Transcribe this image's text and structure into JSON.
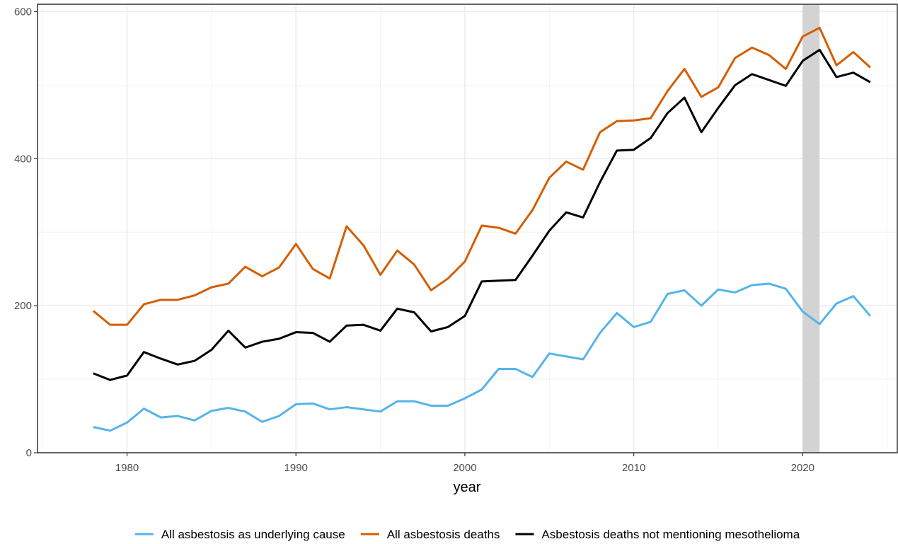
{
  "chart_data": {
    "type": "line",
    "title": "",
    "xlabel": "year",
    "ylabel": "",
    "xlim": [
      1974.7,
      2025.6
    ],
    "ylim": [
      0,
      610
    ],
    "xticks": [
      1980,
      1990,
      2000,
      2010,
      2020
    ],
    "yticks": [
      0,
      200,
      400,
      600
    ],
    "grid": true,
    "legend_position": "bottom",
    "highlight_band": {
      "x_start": 2020,
      "x_end": 2021,
      "color": "#d3d3d3"
    },
    "x": [
      1978,
      1979,
      1980,
      1981,
      1982,
      1983,
      1984,
      1985,
      1986,
      1987,
      1988,
      1989,
      1990,
      1991,
      1992,
      1993,
      1994,
      1995,
      1996,
      1997,
      1998,
      1999,
      2000,
      2001,
      2002,
      2003,
      2004,
      2005,
      2006,
      2007,
      2008,
      2009,
      2010,
      2011,
      2012,
      2013,
      2014,
      2015,
      2016,
      2017,
      2018,
      2019,
      2020,
      2021,
      2022,
      2023,
      2024
    ],
    "series": [
      {
        "name": "All asbestosis as underlying cause",
        "color": "#56B4E9",
        "values": [
          35,
          30,
          41,
          60,
          48,
          50,
          44,
          57,
          61,
          56,
          42,
          50,
          66,
          67,
          59,
          62,
          59,
          56,
          70,
          70,
          64,
          64,
          74,
          86,
          114,
          114,
          103,
          135,
          131,
          127,
          163,
          190,
          171,
          178,
          216,
          221,
          200,
          222,
          218,
          228,
          230,
          223,
          192,
          175,
          203,
          213,
          186
        ]
      },
      {
        "name": "All asbestosis deaths",
        "color": "#D55E00",
        "values": [
          193,
          174,
          174,
          202,
          208,
          208,
          214,
          225,
          230,
          253,
          240,
          252,
          284,
          250,
          237,
          308,
          282,
          242,
          275,
          256,
          221,
          237,
          260,
          309,
          306,
          298,
          330,
          374,
          396,
          385,
          436,
          451,
          452,
          455,
          492,
          522,
          484,
          497,
          537,
          551,
          541,
          522,
          566,
          578,
          527,
          545,
          524
        ]
      },
      {
        "name": "Asbestosis deaths not mentioning mesothelioma",
        "color": "#000000",
        "values": [
          108,
          99,
          105,
          137,
          128,
          120,
          125,
          140,
          166,
          143,
          151,
          155,
          164,
          163,
          151,
          173,
          174,
          166,
          196,
          191,
          165,
          171,
          186,
          233,
          234,
          235,
          268,
          302,
          327,
          320,
          368,
          411,
          412,
          428,
          462,
          483,
          436,
          469,
          500,
          515,
          507,
          499,
          533,
          548,
          511,
          517,
          504
        ]
      }
    ]
  }
}
